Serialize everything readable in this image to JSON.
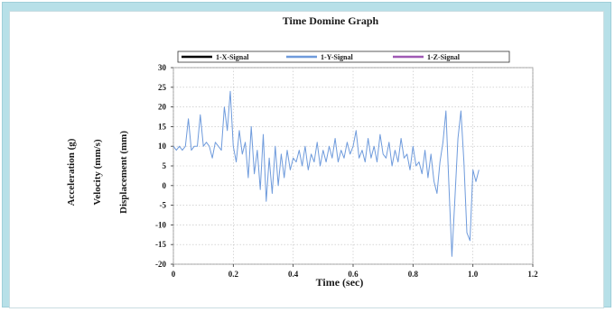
{
  "chart_data": {
    "type": "line",
    "title": "Time Domine Graph",
    "xlabel": "Time (sec)",
    "ylabels": [
      "Acceleration (g)",
      "Velocity (mm/s)",
      "Displacement (mm)"
    ],
    "xlim": [
      0,
      1.2
    ],
    "ylim": [
      -20,
      30
    ],
    "x_ticks": [
      "0",
      "0.2",
      "0.4",
      "0.6",
      "0.8",
      "1.0",
      "1.2"
    ],
    "y_ticks": [
      "30",
      "25",
      "20",
      "15",
      "10",
      "5",
      "0",
      "-5",
      "-10",
      "-15",
      "-20"
    ],
    "grid": true,
    "legend_position": "top",
    "series": [
      {
        "name": "1-X-Signal",
        "color": "#000000",
        "values": []
      },
      {
        "name": "1-Y-Signal",
        "color": "#6f9bdc",
        "x": [
          0.0,
          0.01,
          0.02,
          0.03,
          0.04,
          0.05,
          0.06,
          0.07,
          0.08,
          0.09,
          0.1,
          0.11,
          0.12,
          0.13,
          0.14,
          0.15,
          0.16,
          0.17,
          0.18,
          0.19,
          0.2,
          0.21,
          0.22,
          0.23,
          0.24,
          0.25,
          0.26,
          0.27,
          0.28,
          0.29,
          0.3,
          0.31,
          0.32,
          0.33,
          0.34,
          0.35,
          0.36,
          0.37,
          0.38,
          0.39,
          0.4,
          0.41,
          0.42,
          0.43,
          0.44,
          0.45,
          0.46,
          0.47,
          0.48,
          0.49,
          0.5,
          0.51,
          0.52,
          0.53,
          0.54,
          0.55,
          0.56,
          0.57,
          0.58,
          0.59,
          0.6,
          0.61,
          0.62,
          0.63,
          0.64,
          0.65,
          0.66,
          0.67,
          0.68,
          0.69,
          0.7,
          0.71,
          0.72,
          0.73,
          0.74,
          0.75,
          0.76,
          0.77,
          0.78,
          0.79,
          0.8,
          0.81,
          0.82,
          0.83,
          0.84,
          0.85,
          0.86,
          0.87,
          0.88,
          0.89,
          0.9,
          0.91,
          0.92,
          0.93,
          0.94,
          0.95,
          0.96,
          0.97,
          0.98,
          0.99,
          1.0,
          1.01,
          1.02
        ],
        "values": [
          10,
          9,
          10,
          9,
          10,
          17,
          9,
          10,
          10,
          18,
          10,
          11,
          10,
          7,
          11,
          10,
          9,
          20,
          14,
          24,
          10,
          6,
          14,
          8,
          11,
          2,
          15,
          3,
          9,
          -1,
          13,
          -4,
          7,
          -2,
          10,
          0,
          8,
          2,
          9,
          4,
          7,
          6,
          9,
          5,
          10,
          4,
          8,
          6,
          11,
          5,
          9,
          6,
          10,
          7,
          12,
          6,
          9,
          7,
          11,
          8,
          10,
          14,
          7,
          9,
          6,
          12,
          7,
          10,
          6,
          13,
          8,
          7,
          11,
          5,
          9,
          6,
          12,
          7,
          8,
          4,
          10,
          5,
          6,
          3,
          9,
          2,
          8,
          1,
          -2,
          6,
          11,
          19,
          0,
          -18,
          -3,
          12,
          19,
          6,
          -12,
          -14,
          4,
          1,
          4
        ]
      },
      {
        "name": "1-Z-Signal",
        "color": "#a05ab4",
        "values": []
      }
    ]
  }
}
